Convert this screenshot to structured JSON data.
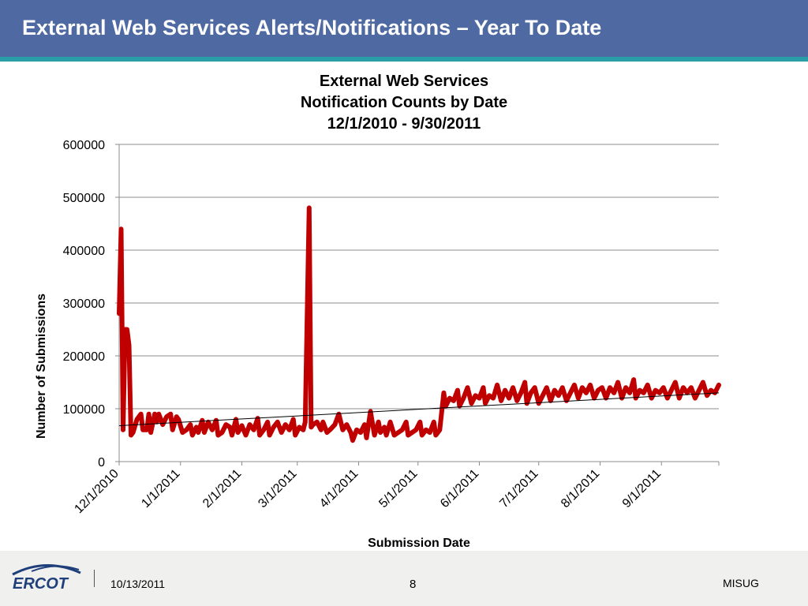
{
  "slide": {
    "title": "External Web Services Alerts/Notifications – Year To Date"
  },
  "footer": {
    "logo_text": "ERCOT",
    "date": "10/13/2011",
    "page_number": "8",
    "org": "MISUG"
  },
  "colors": {
    "header": "#4f6aa3",
    "header_stripe": "#2a9fa8",
    "series": "#c00000",
    "trendline": "#000000",
    "footer": "#f0f0ee",
    "logo": "#1f3f7a"
  },
  "chart_data": {
    "type": "line",
    "title": [
      "External Web Services",
      "Notification Counts by Date",
      "12/1/2010 - 9/30/2011"
    ],
    "xlabel": "Submission Date",
    "ylabel": "Number of Submissions",
    "ylim": [
      0,
      600000
    ],
    "yticks": [
      0,
      100000,
      200000,
      300000,
      400000,
      500000,
      600000
    ],
    "xlim": [
      "12/1/2010",
      "9/30/2011"
    ],
    "xticks": [
      "12/1/2010",
      "1/1/2011",
      "2/1/2011",
      "3/1/2011",
      "4/1/2011",
      "5/1/2011",
      "6/1/2011",
      "7/1/2011",
      "8/1/2011",
      "9/1/2011"
    ],
    "grid": true,
    "legend": "none",
    "series": [
      {
        "points": [
          [
            "12/1/2010",
            280000
          ],
          [
            "12/2/2010",
            440000
          ],
          [
            "12/3/2010",
            60000
          ],
          [
            "12/4/2010",
            250000
          ],
          [
            "12/5/2010",
            250000
          ],
          [
            "12/6/2010",
            220000
          ],
          [
            "12/7/2010",
            50000
          ],
          [
            "12/8/2010",
            55000
          ],
          [
            "12/10/2010",
            80000
          ],
          [
            "12/12/2010",
            90000
          ],
          [
            "12/13/2010",
            60000
          ],
          [
            "12/15/2010",
            60000
          ],
          [
            "12/16/2010",
            90000
          ],
          [
            "12/17/2010",
            55000
          ],
          [
            "12/19/2010",
            90000
          ],
          [
            "12/20/2010",
            75000
          ],
          [
            "12/21/2010",
            90000
          ],
          [
            "12/23/2010",
            70000
          ],
          [
            "12/25/2010",
            85000
          ],
          [
            "12/27/2010",
            90000
          ],
          [
            "12/28/2010",
            60000
          ],
          [
            "12/30/2010",
            85000
          ],
          [
            "12/31/2010",
            80000
          ],
          [
            "1/2/2011",
            55000
          ],
          [
            "1/4/2011",
            60000
          ],
          [
            "1/6/2011",
            70000
          ],
          [
            "1/7/2011",
            50000
          ],
          [
            "1/9/2011",
            65000
          ],
          [
            "1/10/2011",
            55000
          ],
          [
            "1/12/2011",
            78000
          ],
          [
            "1/13/2011",
            55000
          ],
          [
            "1/15/2011",
            75000
          ],
          [
            "1/17/2011",
            60000
          ],
          [
            "1/19/2011",
            78000
          ],
          [
            "1/20/2011",
            50000
          ],
          [
            "1/22/2011",
            55000
          ],
          [
            "1/24/2011",
            70000
          ],
          [
            "1/26/2011",
            65000
          ],
          [
            "1/27/2011",
            50000
          ],
          [
            "1/29/2011",
            80000
          ],
          [
            "1/30/2011",
            55000
          ],
          [
            "2/1/2011",
            68000
          ],
          [
            "2/3/2011",
            50000
          ],
          [
            "2/5/2011",
            70000
          ],
          [
            "2/7/2011",
            60000
          ],
          [
            "2/9/2011",
            82000
          ],
          [
            "2/10/2011",
            50000
          ],
          [
            "2/12/2011",
            60000
          ],
          [
            "2/14/2011",
            75000
          ],
          [
            "2/15/2011",
            50000
          ],
          [
            "2/17/2011",
            65000
          ],
          [
            "2/19/2011",
            75000
          ],
          [
            "2/21/2011",
            55000
          ],
          [
            "2/23/2011",
            70000
          ],
          [
            "2/25/2011",
            60000
          ],
          [
            "2/27/2011",
            80000
          ],
          [
            "2/28/2011",
            50000
          ],
          [
            "3/2/2011",
            65000
          ],
          [
            "3/4/2011",
            60000
          ],
          [
            "3/5/2011",
            75000
          ],
          [
            "3/7/2011",
            480000
          ],
          [
            "3/8/2011",
            65000
          ],
          [
            "3/9/2011",
            70000
          ],
          [
            "3/11/2011",
            75000
          ],
          [
            "3/13/2011",
            60000
          ],
          [
            "3/14/2011",
            75000
          ],
          [
            "3/16/2011",
            55000
          ],
          [
            "3/18/2011",
            62000
          ],
          [
            "3/20/2011",
            70000
          ],
          [
            "3/22/2011",
            90000
          ],
          [
            "3/24/2011",
            60000
          ],
          [
            "3/26/2011",
            70000
          ],
          [
            "3/28/2011",
            55000
          ],
          [
            "3/29/2011",
            40000
          ],
          [
            "3/31/2011",
            60000
          ],
          [
            "4/2/2011",
            55000
          ],
          [
            "4/4/2011",
            70000
          ],
          [
            "4/5/2011",
            45000
          ],
          [
            "4/7/2011",
            95000
          ],
          [
            "4/9/2011",
            50000
          ],
          [
            "4/11/2011",
            75000
          ],
          [
            "4/12/2011",
            55000
          ],
          [
            "4/14/2011",
            65000
          ],
          [
            "4/15/2011",
            50000
          ],
          [
            "4/17/2011",
            75000
          ],
          [
            "4/19/2011",
            50000
          ],
          [
            "4/21/2011",
            55000
          ],
          [
            "4/23/2011",
            60000
          ],
          [
            "4/25/2011",
            75000
          ],
          [
            "4/26/2011",
            50000
          ],
          [
            "4/28/2011",
            55000
          ],
          [
            "4/30/2011",
            60000
          ],
          [
            "5/2/2011",
            75000
          ],
          [
            "5/3/2011",
            50000
          ],
          [
            "5/5/2011",
            60000
          ],
          [
            "5/7/2011",
            55000
          ],
          [
            "5/9/2011",
            75000
          ],
          [
            "5/10/2011",
            50000
          ],
          [
            "5/12/2011",
            60000
          ],
          [
            "5/14/2011",
            130000
          ],
          [
            "5/15/2011",
            105000
          ],
          [
            "5/17/2011",
            120000
          ],
          [
            "5/19/2011",
            115000
          ],
          [
            "5/21/2011",
            135000
          ],
          [
            "5/22/2011",
            105000
          ],
          [
            "5/24/2011",
            120000
          ],
          [
            "5/26/2011",
            140000
          ],
          [
            "5/28/2011",
            110000
          ],
          [
            "5/30/2011",
            125000
          ],
          [
            "6/1/2011",
            120000
          ],
          [
            "6/3/2011",
            140000
          ],
          [
            "6/4/2011",
            110000
          ],
          [
            "6/6/2011",
            125000
          ],
          [
            "6/8/2011",
            120000
          ],
          [
            "6/10/2011",
            145000
          ],
          [
            "6/12/2011",
            115000
          ],
          [
            "6/14/2011",
            135000
          ],
          [
            "6/16/2011",
            120000
          ],
          [
            "6/18/2011",
            140000
          ],
          [
            "6/20/2011",
            115000
          ],
          [
            "6/22/2011",
            130000
          ],
          [
            "6/24/2011",
            150000
          ],
          [
            "6/25/2011",
            110000
          ],
          [
            "6/27/2011",
            130000
          ],
          [
            "6/29/2011",
            140000
          ],
          [
            "7/1/2011",
            110000
          ],
          [
            "7/3/2011",
            125000
          ],
          [
            "7/5/2011",
            140000
          ],
          [
            "7/7/2011",
            115000
          ],
          [
            "7/9/2011",
            135000
          ],
          [
            "7/11/2011",
            125000
          ],
          [
            "7/13/2011",
            140000
          ],
          [
            "7/15/2011",
            115000
          ],
          [
            "7/17/2011",
            130000
          ],
          [
            "7/19/2011",
            145000
          ],
          [
            "7/21/2011",
            120000
          ],
          [
            "7/23/2011",
            140000
          ],
          [
            "7/25/2011",
            130000
          ],
          [
            "7/27/2011",
            145000
          ],
          [
            "7/29/2011",
            120000
          ],
          [
            "7/31/2011",
            135000
          ],
          [
            "8/2/2011",
            140000
          ],
          [
            "8/4/2011",
            120000
          ],
          [
            "8/6/2011",
            140000
          ],
          [
            "8/8/2011",
            130000
          ],
          [
            "8/10/2011",
            150000
          ],
          [
            "8/12/2011",
            120000
          ],
          [
            "8/14/2011",
            140000
          ],
          [
            "8/16/2011",
            130000
          ],
          [
            "8/18/2011",
            155000
          ],
          [
            "8/19/2011",
            120000
          ],
          [
            "8/21/2011",
            135000
          ],
          [
            "8/23/2011",
            130000
          ],
          [
            "8/25/2011",
            145000
          ],
          [
            "8/27/2011",
            120000
          ],
          [
            "8/29/2011",
            135000
          ],
          [
            "8/31/2011",
            130000
          ],
          [
            "9/2/2011",
            140000
          ],
          [
            "9/4/2011",
            120000
          ],
          [
            "9/6/2011",
            135000
          ],
          [
            "9/8/2011",
            150000
          ],
          [
            "9/10/2011",
            120000
          ],
          [
            "9/12/2011",
            140000
          ],
          [
            "9/14/2011",
            130000
          ],
          [
            "9/16/2011",
            140000
          ],
          [
            "9/18/2011",
            120000
          ],
          [
            "9/20/2011",
            135000
          ],
          [
            "9/22/2011",
            150000
          ],
          [
            "9/24/2011",
            125000
          ],
          [
            "9/26/2011",
            135000
          ],
          [
            "9/28/2011",
            130000
          ],
          [
            "9/30/2011",
            145000
          ]
        ]
      }
    ],
    "trendline": {
      "type": "linear",
      "points": [
        [
          "12/1/2010",
          68000
        ],
        [
          "9/30/2011",
          130000
        ]
      ]
    }
  }
}
